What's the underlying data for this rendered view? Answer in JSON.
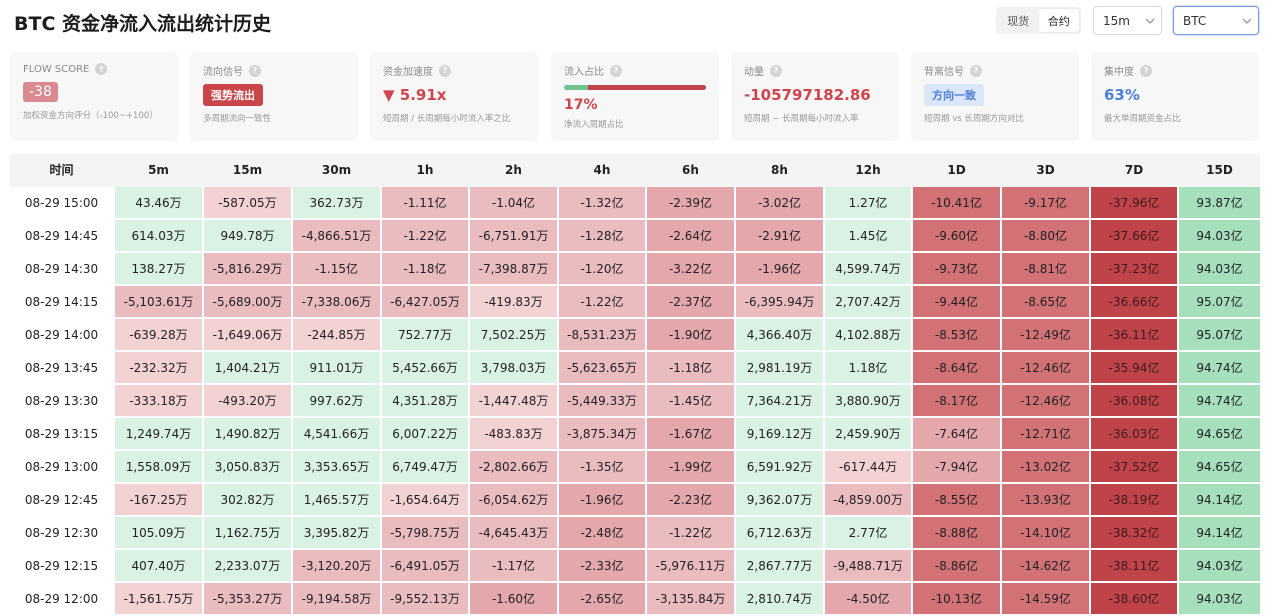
{
  "header": {
    "title": "BTC 资金净流入流出统计历史",
    "market_tabs": [
      "现货",
      "合约"
    ],
    "active_market": "合约",
    "interval": "15m",
    "symbol": "BTC"
  },
  "cards": {
    "flow_score": {
      "label": "FLOW SCORE",
      "value": "-38",
      "desc": "加权资金方向评分（-100~+100）"
    },
    "flow_signal": {
      "label": "流向信号",
      "value": "强势流出",
      "desc": "多周期流向一致性"
    },
    "acceleration": {
      "label": "资金加速度",
      "value": "▼ 5.91x",
      "desc": "短周期 / 长周期每小时流入率之比"
    },
    "inflow_ratio": {
      "label": "流入占比",
      "value": "17%",
      "ratio": 0.17,
      "desc": "净流入周期占比"
    },
    "momentum": {
      "label": "动量",
      "value": "-105797182.86",
      "desc": "短周期 − 长周期每小时流入率"
    },
    "divergence": {
      "label": "背离信号",
      "value": "方向一致",
      "desc": "短周期 vs 长周期方向对比"
    },
    "concentration": {
      "label": "集中度",
      "value": "63%",
      "desc": "最大单周期资金占比"
    }
  },
  "colors": {
    "pos_light": "#d9f2e3",
    "pos_dark": "#a5dfbc",
    "neg_light": "#f3d2d4",
    "neg_mid": "#e4a7ab",
    "neg_dark": "#c0434a"
  },
  "table": {
    "columns": [
      "时间",
      "5m",
      "15m",
      "30m",
      "1h",
      "2h",
      "4h",
      "6h",
      "8h",
      "12h",
      "1D",
      "3D",
      "7D",
      "15D"
    ],
    "rows": [
      {
        "time": "08-29 15:00",
        "values": [
          "43.46万",
          "-587.05万",
          "362.73万",
          "-1.11亿",
          "-1.04亿",
          "-1.32亿",
          "-2.39亿",
          "-3.02亿",
          "1.27亿",
          "-10.41亿",
          "-9.17亿",
          "-37.96亿",
          "93.87亿"
        ]
      },
      {
        "time": "08-29 14:45",
        "values": [
          "614.03万",
          "949.78万",
          "-4,866.51万",
          "-1.22亿",
          "-6,751.91万",
          "-1.28亿",
          "-2.64亿",
          "-2.91亿",
          "1.45亿",
          "-9.60亿",
          "-8.80亿",
          "-37.66亿",
          "94.03亿"
        ]
      },
      {
        "time": "08-29 14:30",
        "values": [
          "138.27万",
          "-5,816.29万",
          "-1.15亿",
          "-1.18亿",
          "-7,398.87万",
          "-1.20亿",
          "-3.22亿",
          "-1.96亿",
          "4,599.74万",
          "-9.73亿",
          "-8.81亿",
          "-37.23亿",
          "94.03亿"
        ]
      },
      {
        "time": "08-29 14:15",
        "values": [
          "-5,103.61万",
          "-5,689.00万",
          "-7,338.06万",
          "-6,427.05万",
          "-419.83万",
          "-1.22亿",
          "-2.37亿",
          "-6,395.94万",
          "2,707.42万",
          "-9.44亿",
          "-8.65亿",
          "-36.66亿",
          "95.07亿"
        ]
      },
      {
        "time": "08-29 14:00",
        "values": [
          "-639.28万",
          "-1,649.06万",
          "-244.85万",
          "752.77万",
          "7,502.25万",
          "-8,531.23万",
          "-1.90亿",
          "4,366.40万",
          "4,102.88万",
          "-8.53亿",
          "-12.49亿",
          "-36.11亿",
          "95.07亿"
        ]
      },
      {
        "time": "08-29 13:45",
        "values": [
          "-232.32万",
          "1,404.21万",
          "911.01万",
          "5,452.66万",
          "3,798.03万",
          "-5,623.65万",
          "-1.18亿",
          "2,981.19万",
          "1.18亿",
          "-8.64亿",
          "-12.46亿",
          "-35.94亿",
          "94.74亿"
        ]
      },
      {
        "time": "08-29 13:30",
        "values": [
          "-333.18万",
          "-493.20万",
          "997.62万",
          "4,351.28万",
          "-1,447.48万",
          "-5,449.33万",
          "-1.45亿",
          "7,364.21万",
          "3,880.90万",
          "-8.17亿",
          "-12.46亿",
          "-36.08亿",
          "94.74亿"
        ]
      },
      {
        "time": "08-29 13:15",
        "values": [
          "1,249.74万",
          "1,490.82万",
          "4,541.66万",
          "6,007.22万",
          "-483.83万",
          "-3,875.34万",
          "-1.67亿",
          "9,169.12万",
          "2,459.90万",
          "-7.64亿",
          "-12.71亿",
          "-36.03亿",
          "94.65亿"
        ]
      },
      {
        "time": "08-29 13:00",
        "values": [
          "1,558.09万",
          "3,050.83万",
          "3,353.65万",
          "6,749.47万",
          "-2,802.66万",
          "-1.35亿",
          "-1.99亿",
          "6,591.92万",
          "-617.44万",
          "-7.94亿",
          "-13.02亿",
          "-37.52亿",
          "94.65亿"
        ]
      },
      {
        "time": "08-29 12:45",
        "values": [
          "-167.25万",
          "302.82万",
          "1,465.57万",
          "-1,654.64万",
          "-6,054.62万",
          "-1.96亿",
          "-2.23亿",
          "9,362.07万",
          "-4,859.00万",
          "-8.55亿",
          "-13.93亿",
          "-38.19亿",
          "94.14亿"
        ]
      },
      {
        "time": "08-29 12:30",
        "values": [
          "105.09万",
          "1,162.75万",
          "3,395.82万",
          "-5,798.75万",
          "-4,645.43万",
          "-2.48亿",
          "-1.22亿",
          "6,712.63万",
          "2.77亿",
          "-8.88亿",
          "-14.10亿",
          "-38.32亿",
          "94.14亿"
        ]
      },
      {
        "time": "08-29 12:15",
        "values": [
          "407.40万",
          "2,233.07万",
          "-3,120.20万",
          "-6,491.05万",
          "-1.17亿",
          "-2.33亿",
          "-5,976.11万",
          "2,867.77万",
          "-9,488.71万",
          "-8.86亿",
          "-14.62亿",
          "-38.11亿",
          "94.03亿"
        ]
      },
      {
        "time": "08-29 12:00",
        "values": [
          "-1,561.75万",
          "-5,353.27万",
          "-9,194.58万",
          "-9,552.13万",
          "-1.60亿",
          "-2.65亿",
          "-3,135.84万",
          "2,810.74万",
          "-4.50亿",
          "-10.13亿",
          "-14.59亿",
          "-38.60亿",
          "94.03亿"
        ]
      }
    ]
  }
}
